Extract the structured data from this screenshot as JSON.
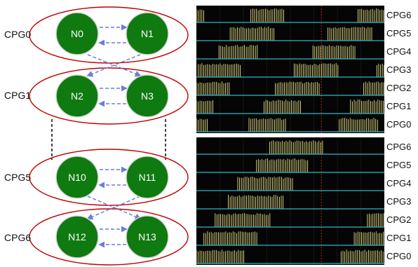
{
  "colors": {
    "node_fill": "#0f7a10",
    "node_stroke": "#d9d9d9",
    "ring": "#c00000",
    "arrow": "#6a7ed8",
    "scope_bg": "#050505",
    "scope_line": "#30b8c8",
    "spike": "#e8e28a",
    "marker": "#b02a1a"
  },
  "cpgs": [
    {
      "label": "CPG0",
      "nodes": [
        "N0",
        "N1"
      ]
    },
    {
      "label": "CPG1",
      "nodes": [
        "N2",
        "N3"
      ]
    },
    {
      "label": "CPG5",
      "nodes": [
        "N10",
        "N11"
      ]
    },
    {
      "label": "CPG6",
      "nodes": [
        "N12",
        "N13"
      ]
    }
  ],
  "traces": {
    "top": {
      "channels": [
        {
          "label": "CPG6",
          "bursts": [
            [
              0.0,
              0.04
            ],
            [
              0.29,
              0.47
            ],
            [
              0.86,
              1.0
            ]
          ]
        },
        {
          "label": "CPG5",
          "bursts": [
            [
              0.18,
              0.42
            ],
            [
              0.7,
              0.94
            ]
          ]
        },
        {
          "label": "CPG4",
          "bursts": [
            [
              0.12,
              0.33
            ],
            [
              0.62,
              0.85
            ]
          ]
        },
        {
          "label": "CPG3",
          "bursts": [
            [
              0.01,
              0.24
            ],
            [
              0.52,
              0.76
            ],
            [
              0.96,
              1.0
            ]
          ]
        },
        {
          "label": "CPG2",
          "bursts": [
            [
              0.0,
              0.18
            ],
            [
              0.42,
              0.66
            ],
            [
              0.89,
              1.0
            ]
          ]
        },
        {
          "label": "CPG1",
          "bursts": [
            [
              0.0,
              0.09
            ],
            [
              0.36,
              0.56
            ],
            [
              0.82,
              1.0
            ]
          ]
        },
        {
          "label": "CPG0",
          "bursts": [
            [
              0.0,
              0.06
            ],
            [
              0.28,
              0.48
            ],
            [
              0.76,
              0.97
            ]
          ]
        }
      ]
    },
    "bottom": {
      "channels": [
        {
          "label": "CPG6",
          "bursts": [
            [
              0.39,
              0.68
            ]
          ]
        },
        {
          "label": "CPG5",
          "bursts": [
            [
              0.32,
              0.6
            ]
          ]
        },
        {
          "label": "CPG4",
          "bursts": [
            [
              0.22,
              0.52
            ]
          ]
        },
        {
          "label": "CPG3",
          "bursts": [
            [
              0.17,
              0.47
            ]
          ]
        },
        {
          "label": "CPG2",
          "bursts": [
            [
              0.1,
              0.4
            ],
            [
              0.91,
              1.0
            ]
          ]
        },
        {
          "label": "CPG1",
          "bursts": [
            [
              0.04,
              0.33
            ],
            [
              0.84,
              1.0
            ]
          ]
        },
        {
          "label": "CPG0",
          "bursts": [
            [
              0.0,
              0.26
            ],
            [
              0.77,
              1.0
            ]
          ]
        }
      ]
    }
  }
}
